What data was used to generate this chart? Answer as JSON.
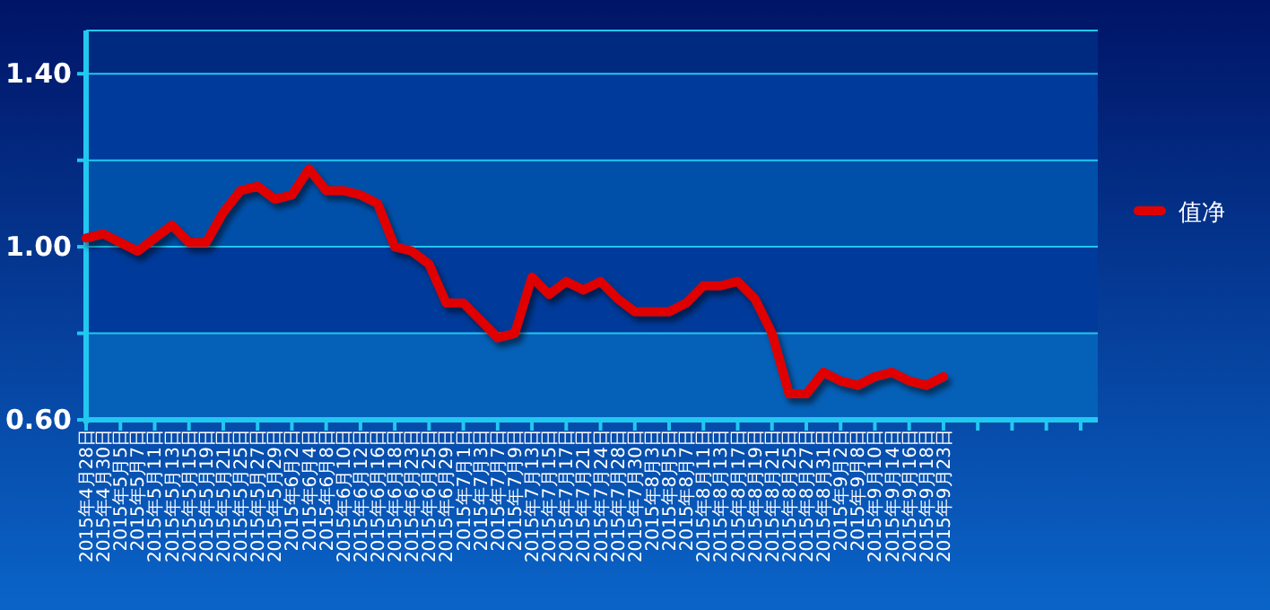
{
  "chart_data": {
    "type": "line",
    "categories": [
      "2015年4月28日",
      "2015年4月30日",
      "2015年5月5日",
      "2015年5月7日",
      "2015年5月11日",
      "2015年5月13日",
      "2015年5月15日",
      "2015年5月19日",
      "2015年5月21日",
      "2015年5月25日",
      "2015年5月27日",
      "2015年5月29日",
      "2015年6月2日",
      "2015年6月4日",
      "2015年6月8日",
      "2015年6月10日",
      "2015年6月12日",
      "2015年6月16日",
      "2015年6月18日",
      "2015年6月23日",
      "2015年6月25日",
      "2015年6月29日",
      "2015年7月1日",
      "2015年7月3日",
      "2015年7月7日",
      "2015年7月9日",
      "2015年7月13日",
      "2015年7月15日",
      "2015年7月17日",
      "2015年7月21日",
      "2015年7月24日",
      "2015年7月28日",
      "2015年7月30日",
      "2015年8月3日",
      "2015年8月5日",
      "2015年8月7日",
      "2015年8月11日",
      "2015年8月13日",
      "2015年8月17日",
      "2015年8月19日",
      "2015年8月21日",
      "2015年8月25日",
      "2015年8月27日",
      "2015年8月31日",
      "2015年9月2日",
      "2015年9月8日",
      "2015年9月10日",
      "2015年9月14日",
      "2015年9月16日",
      "2015年9月18日",
      "2015年9月23日",
      null,
      null,
      null,
      null,
      null,
      null,
      null,
      null,
      null
    ],
    "series": [
      {
        "name": "值净",
        "color": "#e00000",
        "values": [
          1.02,
          1.03,
          1.01,
          0.99,
          1.02,
          1.05,
          1.01,
          1.01,
          1.08,
          1.13,
          1.14,
          1.11,
          1.12,
          1.18,
          1.13,
          1.13,
          1.12,
          1.1,
          1.0,
          0.99,
          0.96,
          0.87,
          0.87,
          0.83,
          0.79,
          0.8,
          0.93,
          0.89,
          0.92,
          0.9,
          0.92,
          0.88,
          0.85,
          0.85,
          0.85,
          0.87,
          0.91,
          0.91,
          0.92,
          0.88,
          0.8,
          0.66,
          0.66,
          0.71,
          0.69,
          0.68,
          0.7,
          0.71,
          0.69,
          0.68,
          0.7,
          null,
          null,
          null,
          null,
          null,
          null,
          null,
          null,
          null
        ]
      }
    ],
    "ylim": [
      0.6,
      1.5
    ],
    "yticks": [
      {
        "value": 0.6,
        "label": "0.60"
      },
      {
        "value": 0.8,
        "label": null
      },
      {
        "value": 1.0,
        "label": "1.00"
      },
      {
        "value": 1.2,
        "label": null
      },
      {
        "value": 1.4,
        "label": "1.40"
      }
    ],
    "bands": [
      {
        "axis": "y",
        "from": 0.6,
        "to": 0.8,
        "color": "#0560b8"
      },
      {
        "axis": "y",
        "from": 0.8,
        "to": 1.0,
        "color": "#003a9a"
      },
      {
        "axis": "y",
        "from": 1.0,
        "to": 1.2,
        "color": "#0050aa"
      },
      {
        "axis": "y",
        "from": 1.2,
        "to": 1.4,
        "color": "#003a9a"
      },
      {
        "axis": "y",
        "from": 1.4,
        "to": 1.5,
        "color": "#002a80"
      }
    ],
    "grid": "y",
    "legend": "right",
    "marker": "none",
    "line_style": "solid"
  }
}
